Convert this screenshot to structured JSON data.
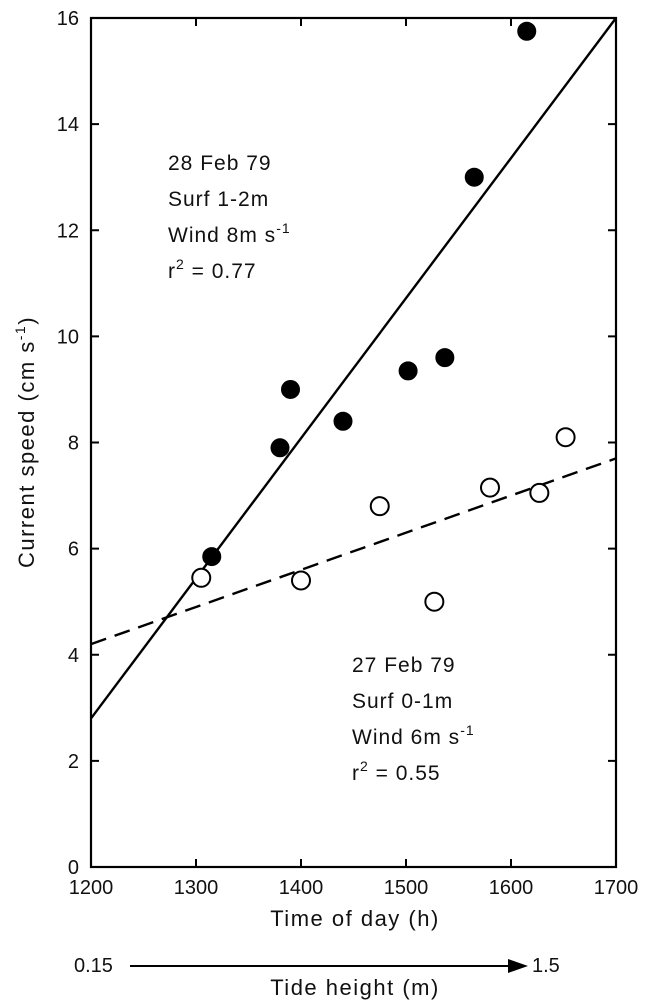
{
  "chart_data": {
    "type": "scatter",
    "title": "",
    "xlabel": "Time of day (h)",
    "ylabel": "Current speed (cm s",
    "ylabel_sup": "-1",
    "ylabel_close": ")",
    "xlim": [
      1200,
      1700
    ],
    "ylim": [
      0,
      16
    ],
    "x_ticks": [
      1200,
      1300,
      1400,
      1500,
      1600,
      1700
    ],
    "y_ticks": [
      0,
      2,
      4,
      6,
      8,
      10,
      12,
      14,
      16
    ],
    "grid": false,
    "series": [
      {
        "marker": "filled-circle",
        "color": "#000000",
        "points": [
          {
            "x": 1315,
            "y": 5.85
          },
          {
            "x": 1380,
            "y": 7.9
          },
          {
            "x": 1390,
            "y": 9.0
          },
          {
            "x": 1440,
            "y": 8.4
          },
          {
            "x": 1502,
            "y": 9.35
          },
          {
            "x": 1537,
            "y": 9.6
          },
          {
            "x": 1565,
            "y": 13.0
          },
          {
            "x": 1615,
            "y": 15.75
          }
        ],
        "regression": {
          "style": "solid",
          "x": [
            1200,
            1700
          ],
          "y": [
            2.8,
            16.0
          ]
        }
      },
      {
        "marker": "open-circle",
        "color": "#000000",
        "points": [
          {
            "x": 1305,
            "y": 5.45
          },
          {
            "x": 1400,
            "y": 5.4
          },
          {
            "x": 1475,
            "y": 6.8
          },
          {
            "x": 1527,
            "y": 5.0
          },
          {
            "x": 1580,
            "y": 7.15
          },
          {
            "x": 1627,
            "y": 7.05
          },
          {
            "x": 1652,
            "y": 8.1
          }
        ],
        "regression": {
          "style": "dashed",
          "x": [
            1200,
            1700
          ],
          "y": [
            4.2,
            7.7
          ]
        }
      }
    ],
    "annotations": [
      {
        "lines": [
          {
            "text": "28 Feb 79"
          },
          {
            "text": "Surf  1-2m"
          },
          {
            "text": "Wind  8m  s",
            "sup": "-1"
          },
          {
            "text": "r",
            "sup": "2",
            "tail": " = 0.77"
          }
        ]
      },
      {
        "lines": [
          {
            "text": "27 Feb 79"
          },
          {
            "text": "Surf  0-1m"
          },
          {
            "text": "Wind  6m  s",
            "sup": "-1"
          },
          {
            "text": "r",
            "sup": "2",
            "tail": " = 0.55"
          }
        ]
      }
    ],
    "secondary_axis": {
      "label": "Tide  height  (m)",
      "start_value": "0.15",
      "end_value": "1.5"
    }
  }
}
